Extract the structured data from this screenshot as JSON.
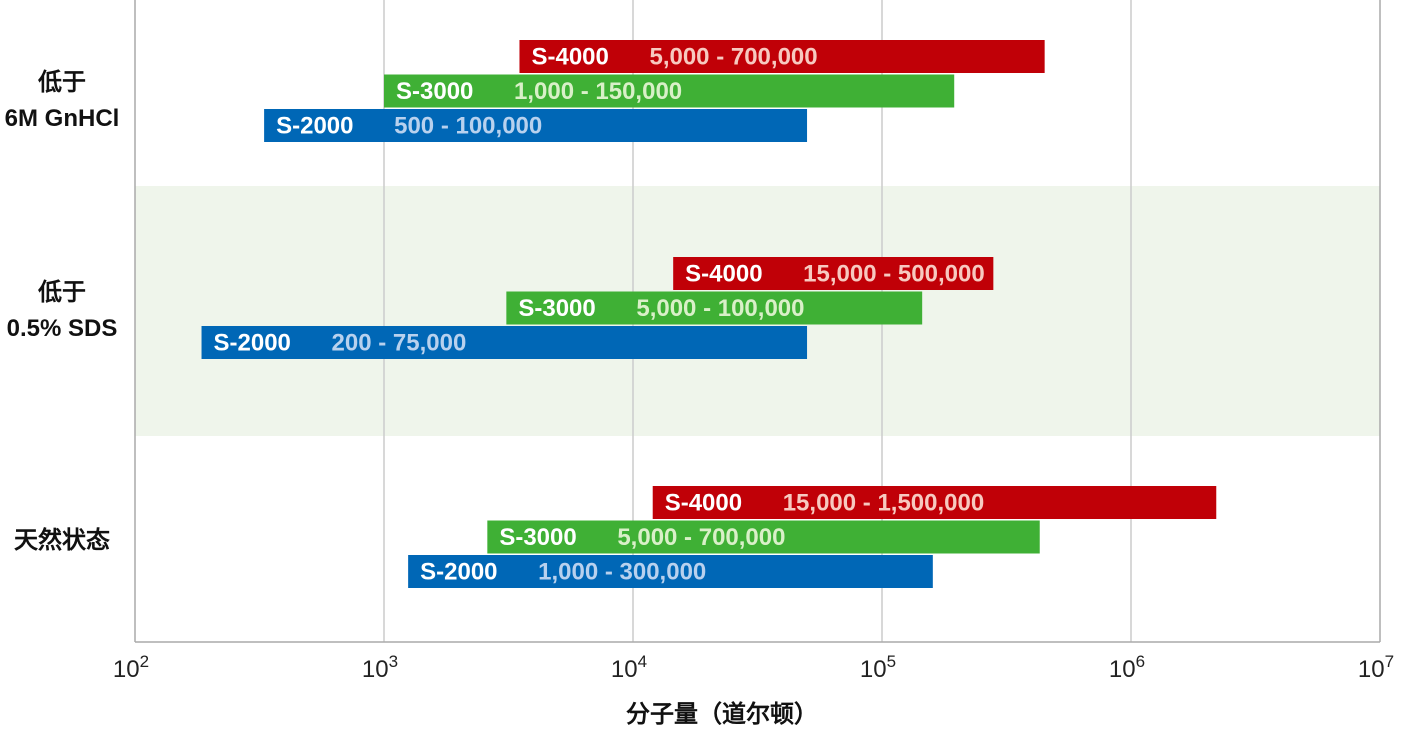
{
  "chart_data": {
    "type": "range_bar",
    "orientation": "horizontal",
    "x_scale": "log10",
    "xlim": [
      100,
      10000000
    ],
    "xlabel": "分子量（道尔顿）",
    "x_ticks": [
      {
        "value": 100,
        "base": "10",
        "exp": "2"
      },
      {
        "value": 1000,
        "base": "10",
        "exp": "3"
      },
      {
        "value": 10000,
        "base": "10",
        "exp": "4"
      },
      {
        "value": 100000,
        "base": "10",
        "exp": "5"
      },
      {
        "value": 1000000,
        "base": "10",
        "exp": "6"
      },
      {
        "value": 10000000,
        "base": "10",
        "exp": "7"
      }
    ],
    "grid": true,
    "colors": {
      "S-4000": "#c00007",
      "S-3000": "#3fb035",
      "S-2000": "#0067b6",
      "name_text": "#ffffff",
      "range_text": {
        "S-4000": "#f7c9c0",
        "S-3000": "#d9f0c8",
        "S-2000": "#b8d1ee"
      },
      "band": "#eff5eb",
      "grid": "#cccccc",
      "axis": "#aaaaaa"
    },
    "groups": [
      {
        "label_lines": [
          "低于",
          "6M GnHCl"
        ],
        "shaded": false,
        "bars": [
          {
            "name": "S-4000",
            "range_text": "5,000 - 700,000",
            "start": 3500,
            "end": 450000
          },
          {
            "name": "S-3000",
            "range_text": "1,000 - 150,000",
            "start": 1000,
            "end": 195000
          },
          {
            "name": "S-2000",
            "range_text": "500 - 100,000",
            "start": 330,
            "end": 50000
          }
        ]
      },
      {
        "label_lines": [
          "低于",
          "0.5% SDS"
        ],
        "shaded": true,
        "bars": [
          {
            "name": "S-4000",
            "range_text": "15,000 - 500,000",
            "start": 14500,
            "end": 280000
          },
          {
            "name": "S-3000",
            "range_text": "5,000 - 100,000",
            "start": 3100,
            "end": 145000
          },
          {
            "name": "S-2000",
            "range_text": "200 - 75,000",
            "start": 185,
            "end": 50000
          }
        ]
      },
      {
        "label_lines": [
          "天然状态"
        ],
        "shaded": false,
        "bars": [
          {
            "name": "S-4000",
            "range_text": "15,000 - 1,500,000",
            "start": 12000,
            "end": 2200000
          },
          {
            "name": "S-3000",
            "range_text": "5,000 - 700,000",
            "start": 2600,
            "end": 430000
          },
          {
            "name": "S-2000",
            "range_text": "1,000 - 300,000",
            "start": 1250,
            "end": 160000
          }
        ]
      }
    ]
  }
}
